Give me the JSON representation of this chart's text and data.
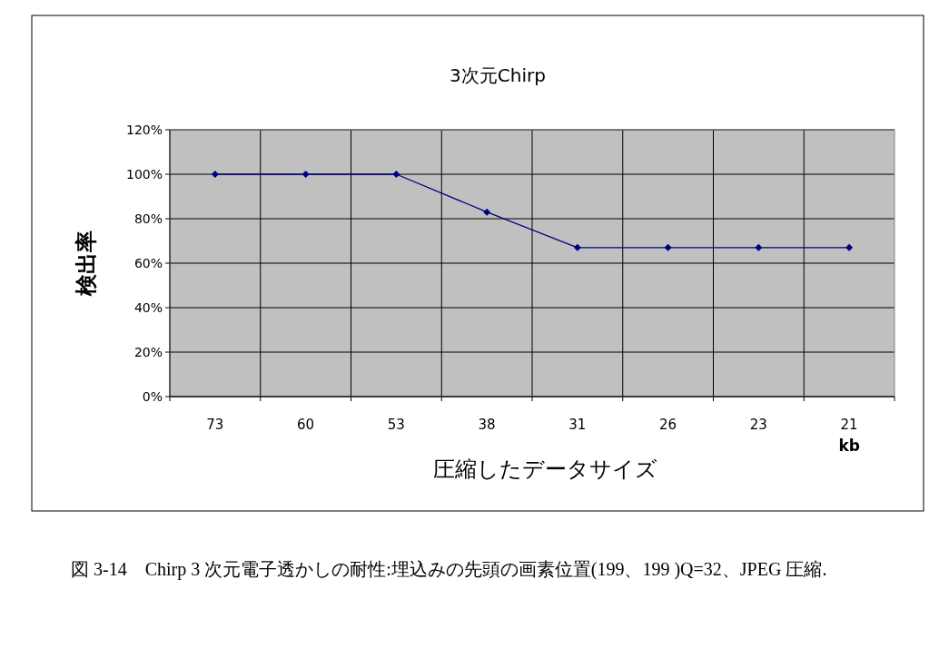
{
  "chart_data": {
    "type": "line",
    "title": "3次元Chirp",
    "xlabel": "圧縮したデータサイズ",
    "ylabel": "検出率",
    "categories": [
      "73",
      "60",
      "53",
      "38",
      "31",
      "26",
      "23",
      "21"
    ],
    "series": [
      {
        "color": "#000080",
        "values": [
          100,
          100,
          100,
          83,
          67,
          67,
          67,
          67
        ]
      }
    ],
    "ylim": [
      0,
      120
    ],
    "yticks": [
      {
        "value": 0,
        "label": "0%"
      },
      {
        "value": 20,
        "label": "20%"
      },
      {
        "value": 40,
        "label": "40%"
      },
      {
        "value": 60,
        "label": "60%"
      },
      {
        "value": 80,
        "label": "80%"
      },
      {
        "value": 100,
        "label": "100%"
      },
      {
        "value": 120,
        "label": "120%"
      }
    ],
    "grid": true,
    "marker": "diamond",
    "line_style": "solid",
    "annotations": [
      "kb",
      "図 3-14　Chirp 3 次元電子透かしの耐性:埋込みの先頭の画素位置(199、199 )Q=32、JPEG 圧縮."
    ]
  }
}
